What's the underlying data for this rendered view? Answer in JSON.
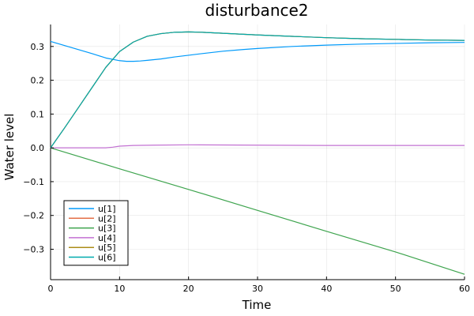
{
  "chart_data": {
    "type": "line",
    "title": "disturbance2",
    "xlabel": "Time",
    "ylabel": "Water level",
    "xlim": [
      0,
      60
    ],
    "ylim": [
      -0.39,
      0.365
    ],
    "x_ticks": [
      0,
      10,
      20,
      30,
      40,
      50,
      60
    ],
    "x_tick_labels": [
      "0",
      "10",
      "20",
      "30",
      "40",
      "50",
      "60"
    ],
    "y_ticks": [
      -0.3,
      -0.2,
      -0.1,
      0.0,
      0.1,
      0.2,
      0.3
    ],
    "y_tick_labels": [
      "−0.3",
      "−0.2",
      "−0.1",
      "0.0",
      "0.1",
      "0.2",
      "0.3"
    ],
    "grid": true,
    "legend_position": "bottom-left",
    "series": [
      {
        "name": "u[1]",
        "color": "#009AFA",
        "points": [
          [
            0,
            0.315
          ],
          [
            2,
            0.303
          ],
          [
            4,
            0.291
          ],
          [
            6,
            0.279
          ],
          [
            8,
            0.266
          ],
          [
            10,
            0.258
          ],
          [
            11,
            0.256
          ],
          [
            12,
            0.256
          ],
          [
            13,
            0.257
          ],
          [
            14,
            0.259
          ],
          [
            16,
            0.263
          ],
          [
            18,
            0.269
          ],
          [
            20,
            0.274
          ],
          [
            22,
            0.279
          ],
          [
            25,
            0.286
          ],
          [
            28,
            0.291
          ],
          [
            30,
            0.294
          ],
          [
            35,
            0.3
          ],
          [
            40,
            0.304
          ],
          [
            45,
            0.307
          ],
          [
            50,
            0.309
          ],
          [
            55,
            0.311
          ],
          [
            60,
            0.312
          ]
        ]
      },
      {
        "name": "u[2]",
        "color": "#E36F47",
        "points": [
          [
            0,
            0.0
          ],
          [
            2,
            0.058
          ],
          [
            4,
            0.118
          ],
          [
            6,
            0.178
          ],
          [
            8,
            0.238
          ],
          [
            10,
            0.285
          ],
          [
            12,
            0.313
          ],
          [
            14,
            0.33
          ],
          [
            16,
            0.338
          ],
          [
            18,
            0.342
          ],
          [
            20,
            0.343
          ],
          [
            22,
            0.342
          ],
          [
            25,
            0.339
          ],
          [
            30,
            0.334
          ],
          [
            35,
            0.33
          ],
          [
            40,
            0.326
          ],
          [
            45,
            0.323
          ],
          [
            50,
            0.321
          ],
          [
            55,
            0.319
          ],
          [
            60,
            0.318
          ]
        ]
      },
      {
        "name": "u[3]",
        "color": "#3EA44E",
        "points": [
          [
            0,
            0.0
          ],
          [
            10,
            -0.062
          ],
          [
            20,
            -0.123
          ],
          [
            30,
            -0.185
          ],
          [
            40,
            -0.247
          ],
          [
            50,
            -0.308
          ],
          [
            60,
            -0.374
          ]
        ]
      },
      {
        "name": "u[4]",
        "color": "#C271D2",
        "points": [
          [
            0,
            0.0
          ],
          [
            8,
            0.0
          ],
          [
            9,
            0.002
          ],
          [
            10,
            0.005
          ],
          [
            12,
            0.007
          ],
          [
            15,
            0.008
          ],
          [
            20,
            0.009
          ],
          [
            30,
            0.008
          ],
          [
            40,
            0.007
          ],
          [
            50,
            0.007
          ],
          [
            60,
            0.007
          ]
        ]
      },
      {
        "name": "u[5]",
        "color": "#AC8D18",
        "points": [
          [
            0,
            0.0
          ],
          [
            2,
            0.058
          ],
          [
            4,
            0.118
          ],
          [
            6,
            0.178
          ],
          [
            8,
            0.238
          ],
          [
            10,
            0.285
          ],
          [
            12,
            0.313
          ],
          [
            14,
            0.33
          ],
          [
            16,
            0.338
          ],
          [
            18,
            0.342
          ],
          [
            20,
            0.343
          ],
          [
            22,
            0.342
          ],
          [
            25,
            0.339
          ],
          [
            30,
            0.334
          ],
          [
            35,
            0.33
          ],
          [
            40,
            0.326
          ],
          [
            45,
            0.323
          ],
          [
            50,
            0.321
          ],
          [
            55,
            0.319
          ],
          [
            60,
            0.318
          ]
        ]
      },
      {
        "name": "u[6]",
        "color": "#00A9AD",
        "points": [
          [
            0,
            0.0
          ],
          [
            2,
            0.058
          ],
          [
            4,
            0.118
          ],
          [
            6,
            0.178
          ],
          [
            8,
            0.238
          ],
          [
            10,
            0.285
          ],
          [
            12,
            0.313
          ],
          [
            14,
            0.33
          ],
          [
            16,
            0.338
          ],
          [
            18,
            0.342
          ],
          [
            20,
            0.343
          ],
          [
            22,
            0.342
          ],
          [
            25,
            0.339
          ],
          [
            30,
            0.334
          ],
          [
            35,
            0.33
          ],
          [
            40,
            0.326
          ],
          [
            45,
            0.323
          ],
          [
            50,
            0.321
          ],
          [
            55,
            0.319
          ],
          [
            60,
            0.318
          ]
        ]
      }
    ]
  }
}
